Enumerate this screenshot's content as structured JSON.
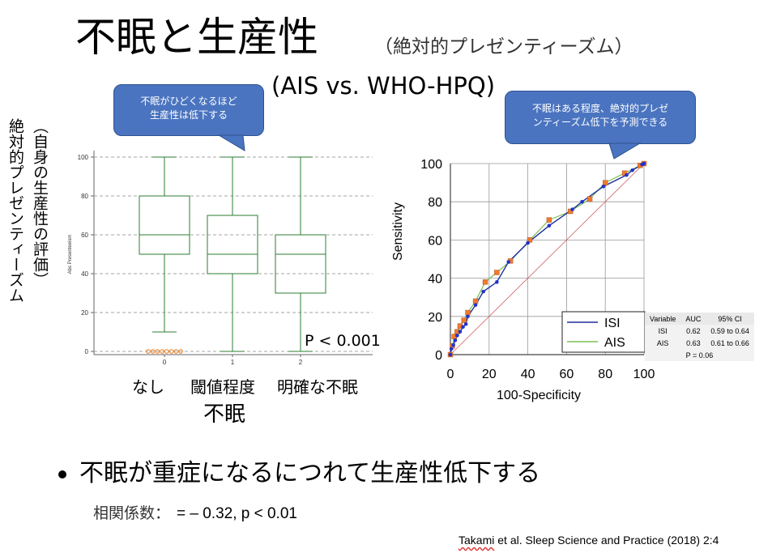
{
  "slide": {
    "title_main": "不眠と生産性",
    "title_sub": "（絶対的プレゼンティーズム）",
    "title_line2": "(AIS vs. WHO-HPQ)",
    "callout_left": [
      "不眠がひどくなるほど",
      "生産性は低下する"
    ],
    "callout_right": [
      "不眠はある程度、絶対的プレゼ",
      "ンティーズム低下を予測できる"
    ],
    "ylabel_left_1": "絶対的プレゼンティーズム",
    "ylabel_left_2": "（自身の生産性の評価）",
    "box_categories": [
      "なし",
      "閾値程度",
      "明確な不眠"
    ],
    "box_xlabel": "不眠",
    "pvalue": "P < 0.001",
    "bullet": "不眠が重症になるにつれて生産性低下する",
    "correlation_label": "相関係数：",
    "correlation_value": "= – 0.32, p < 0.01",
    "citation_prefix": "Takami et al. Sleep Science and Practice (2018) 2:4",
    "citation_underlined": "Takami"
  },
  "colors": {
    "box": "#2e7d32",
    "outlier": "#e67e22",
    "callout": "#4a74c0",
    "isi": "#1f2f9e",
    "ais": "#7cbf52",
    "ais_marker": "#f07a2c",
    "diagonal": "#d06060",
    "grid": "#999999"
  },
  "chart_data": [
    {
      "type": "box",
      "ylabel_inner": "Abs Presenteeism",
      "x_ticks": [
        "0",
        "1",
        "2"
      ],
      "y_ticks": [
        0,
        20,
        40,
        60,
        80,
        100
      ],
      "ylim": [
        0,
        100
      ],
      "grid": "dashed-horizontal",
      "boxes": [
        {
          "category": "0",
          "min": 10,
          "q1": 50,
          "median": 60,
          "q3": 80,
          "max": 100,
          "outliers": [
            0,
            0,
            0,
            0,
            0,
            0,
            0,
            0
          ]
        },
        {
          "category": "1",
          "min": 0,
          "q1": 40,
          "median": 50,
          "q3": 70,
          "max": 100,
          "outliers": []
        },
        {
          "category": "2",
          "min": 0,
          "q1": 30,
          "median": 50,
          "q3": 60,
          "max": 100,
          "outliers": []
        }
      ]
    },
    {
      "type": "line",
      "xlabel": "100-Specificity",
      "ylabel": "Sensitivity",
      "xlim": [
        0,
        100
      ],
      "ylim": [
        0,
        100
      ],
      "x_ticks": [
        0,
        20,
        40,
        60,
        80,
        100
      ],
      "y_ticks": [
        0,
        20,
        40,
        60,
        80,
        100
      ],
      "grid": true,
      "legend_position": "bottom-right",
      "series": [
        {
          "name": "ISI",
          "x": [
            0,
            0.5,
            1.5,
            2.5,
            3.5,
            5,
            6.5,
            8,
            9,
            13,
            17,
            24,
            30,
            40,
            51,
            63,
            68,
            79,
            91,
            94,
            99,
            100
          ],
          "y": [
            0,
            3,
            5,
            7.5,
            10,
            12,
            14.5,
            16,
            20,
            26,
            33,
            38,
            48.5,
            58.5,
            67.5,
            76,
            80,
            88,
            94,
            96.5,
            99.5,
            100
          ]
        },
        {
          "name": "AIS",
          "x": [
            0,
            1,
            2,
            3.5,
            5,
            7,
            9,
            13,
            18,
            24,
            31,
            41,
            51,
            62,
            72,
            80,
            90,
            98,
            100
          ],
          "y": [
            0,
            4.5,
            9.5,
            12,
            15,
            18,
            22,
            28,
            38,
            43,
            49,
            60,
            70.5,
            75,
            81.5,
            90,
            95,
            99,
            100
          ]
        }
      ],
      "diagonal": true,
      "stats_table": {
        "headers": [
          "Variable",
          "AUC",
          "95% CI"
        ],
        "rows": [
          [
            "ISI",
            "0.62",
            "0.59 to 0.64"
          ],
          [
            "AIS",
            "0.63",
            "0.61 to 0.66"
          ]
        ],
        "footer": "P = 0.06"
      }
    }
  ]
}
